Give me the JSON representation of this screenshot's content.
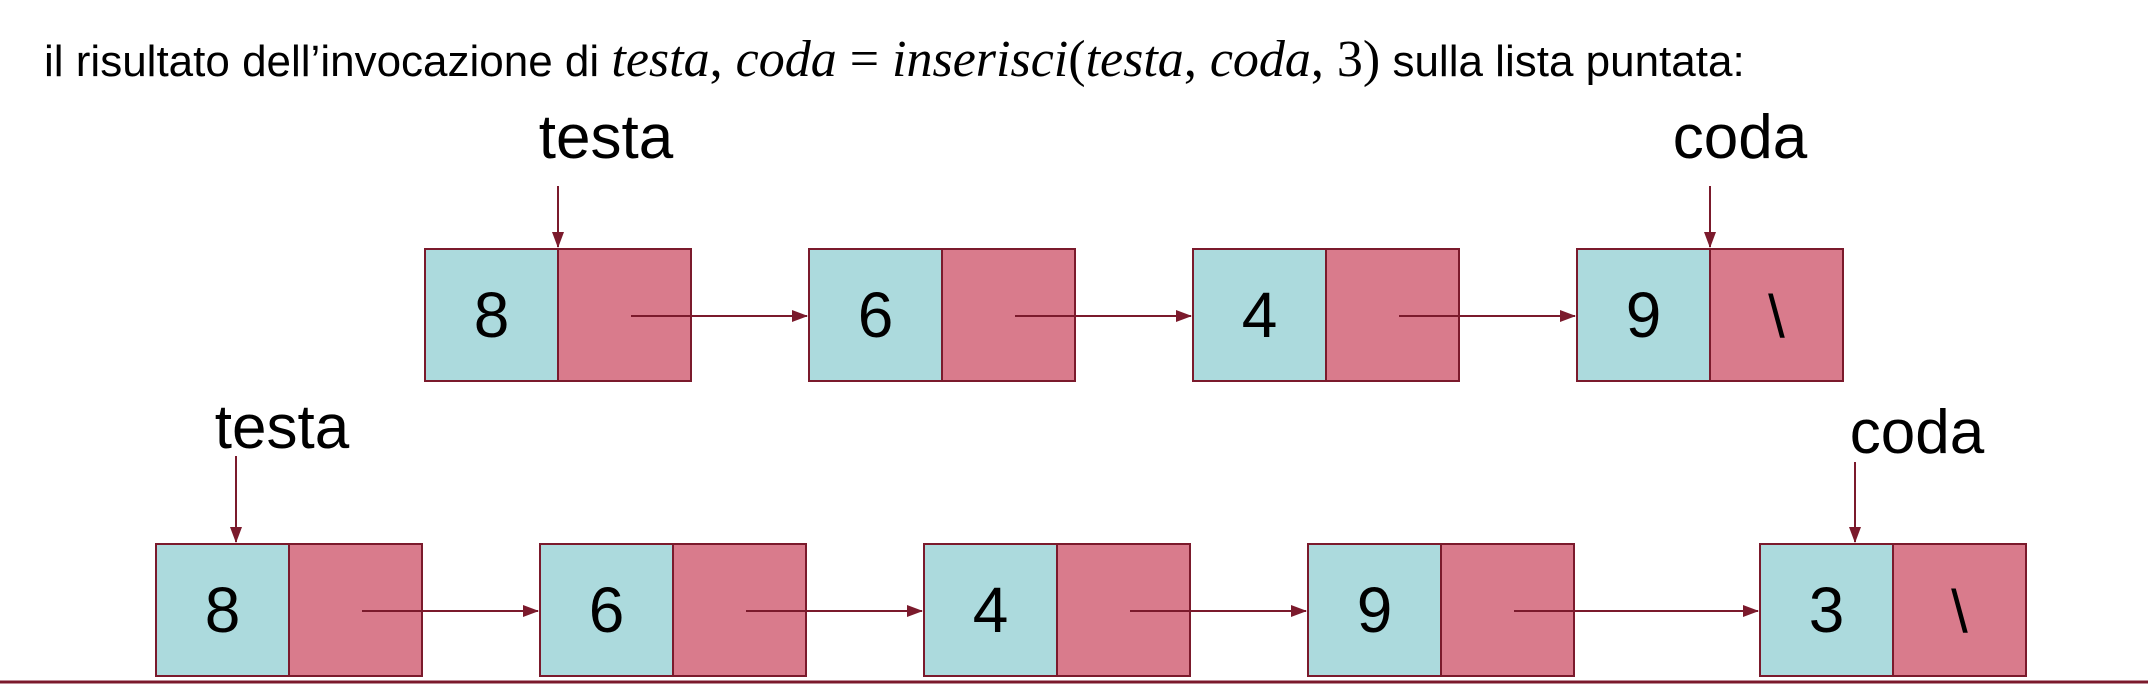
{
  "caption": {
    "prefix": "il risultato dell’invocazione di ",
    "math": {
      "var_testa": "testa",
      "comma": ", ",
      "var_coda": "coda",
      "equals": " = ",
      "func": "inserisci",
      "open": "(",
      "arg1": "testa",
      "sep1": ", ",
      "arg2": "coda",
      "sep2": ", ",
      "arg3": "3",
      "close": ")"
    },
    "suffix": " sulla lista puntata:"
  },
  "colors": {
    "value_cell": "#acdadd",
    "next_cell": "#d97b8c",
    "border": "#7b1a2c",
    "arrow": "#7b1a2c",
    "text": "#000000"
  },
  "lists": [
    {
      "id": "before",
      "head_label": "testa",
      "tail_label": "coda",
      "nodes": [
        {
          "value": "8",
          "next": ""
        },
        {
          "value": "6",
          "next": ""
        },
        {
          "value": "4",
          "next": ""
        },
        {
          "value": "9",
          "next": "\\"
        }
      ]
    },
    {
      "id": "after",
      "head_label": "testa",
      "tail_label": "coda",
      "nodes": [
        {
          "value": "8",
          "next": ""
        },
        {
          "value": "6",
          "next": ""
        },
        {
          "value": "4",
          "next": ""
        },
        {
          "value": "9",
          "next": ""
        },
        {
          "value": "3",
          "next": "\\"
        }
      ]
    }
  ]
}
